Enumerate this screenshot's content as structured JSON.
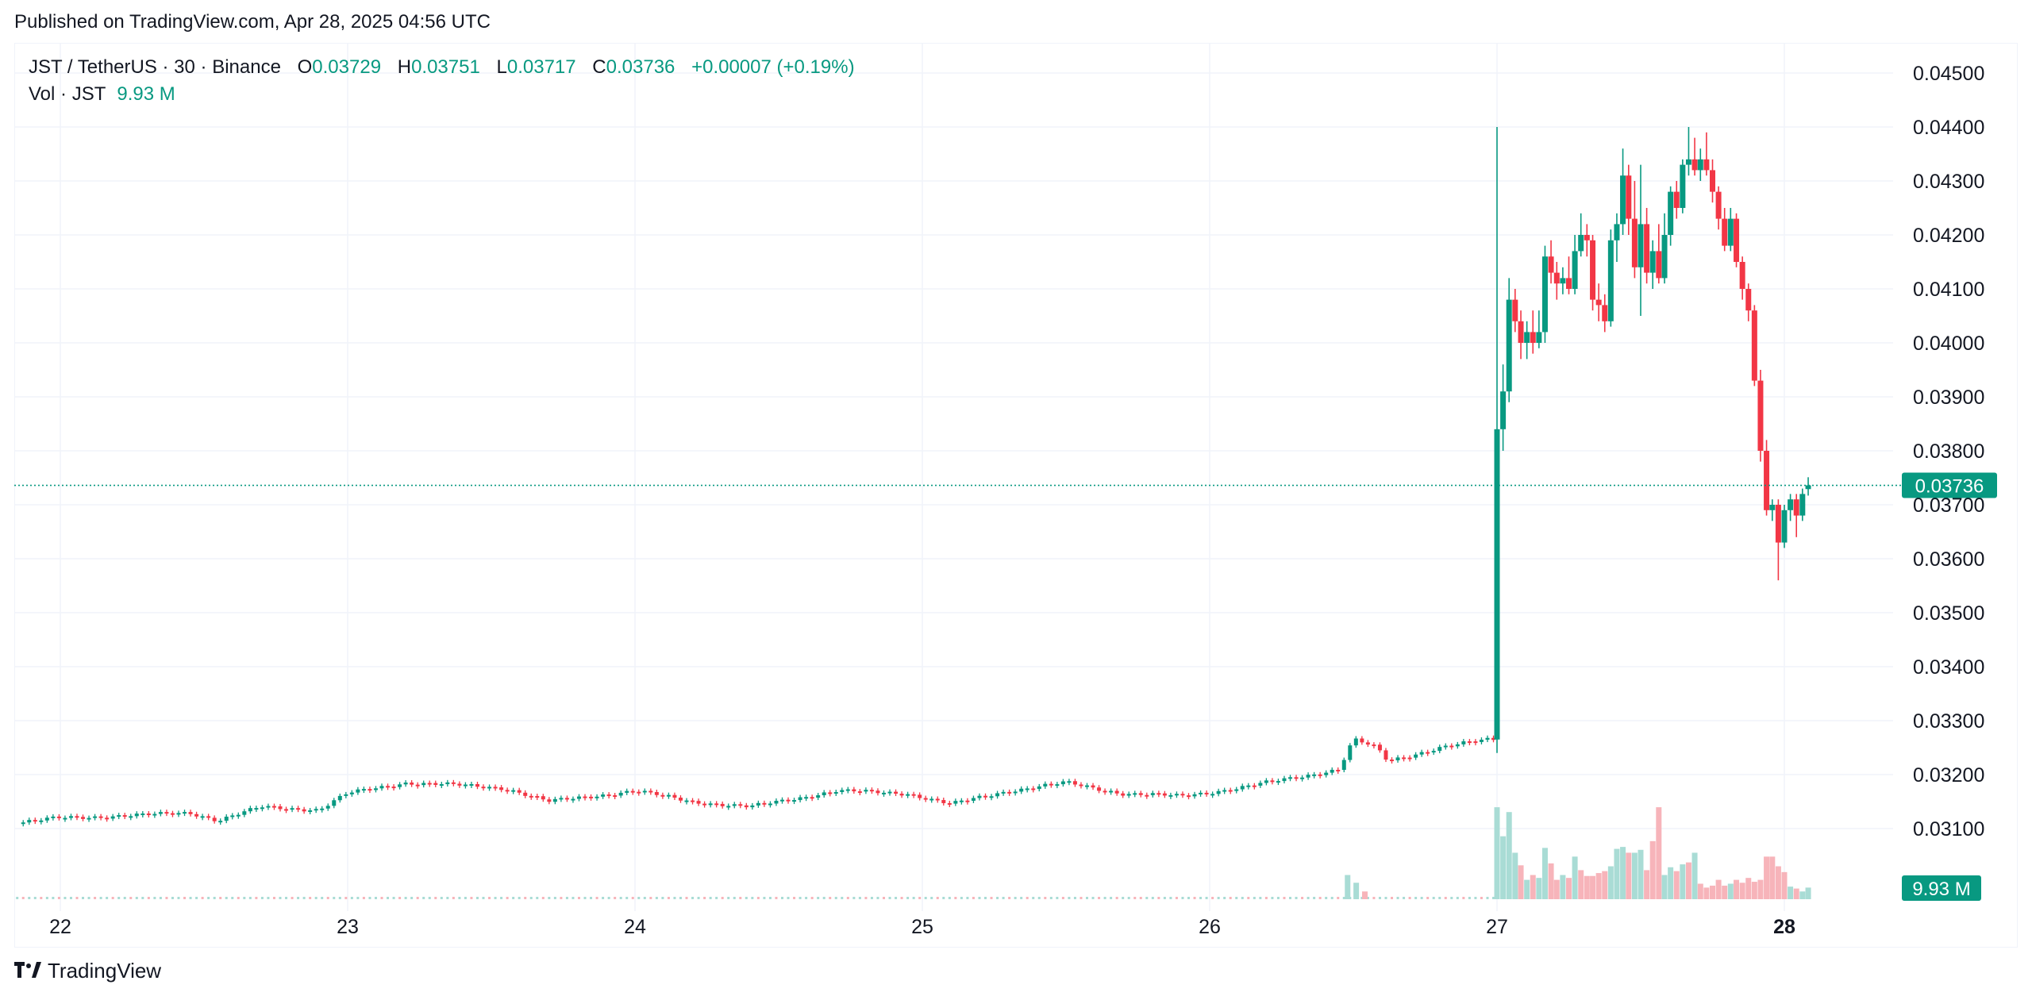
{
  "header": {
    "published": "Published on TradingView.com, Apr 28, 2025 04:56 UTC"
  },
  "legend": {
    "symbol": "JST / TetherUS · 30 · Binance",
    "o_label": "O",
    "o_value": "0.03729",
    "h_label": "H",
    "h_value": "0.03751",
    "l_label": "L",
    "l_value": "0.03717",
    "c_label": "C",
    "c_value": "0.03736",
    "change": "+0.00007 (+0.19%)",
    "vol_label": "Vol · JST",
    "vol_value": "9.93 M"
  },
  "footer": {
    "brand": "TradingView"
  },
  "colors": {
    "up": "#089981",
    "down": "#f23645",
    "up_vol": "#a9dcd5",
    "down_vol": "#f7b4ba",
    "grid": "#f0f3fa",
    "text": "#131722"
  },
  "chart_data": {
    "type": "candlestick",
    "title": "JST / TetherUS · 30 · Binance",
    "interval": "30",
    "x_ticks": [
      "22",
      "23",
      "24",
      "25",
      "26",
      "27",
      "28"
    ],
    "y_ticks": [
      "0.04500",
      "0.04400",
      "0.04300",
      "0.04200",
      "0.04100",
      "0.04000",
      "0.03900",
      "0.03800",
      "0.03700",
      "0.03600",
      "0.03500",
      "0.03400",
      "0.03300",
      "0.03200",
      "0.03100"
    ],
    "ylim": [
      0.03,
      0.0452
    ],
    "last_price": 0.03736,
    "last_price_label": "0.03736",
    "volume_label": "9.93 M",
    "grid": true,
    "price_segments": [
      {
        "day": 21.85,
        "price": 0.0311
      },
      {
        "day": 22.0,
        "price": 0.0312
      },
      {
        "day": 22.3,
        "price": 0.03125
      },
      {
        "day": 22.45,
        "price": 0.0313
      },
      {
        "day": 22.55,
        "price": 0.03115
      },
      {
        "day": 22.7,
        "price": 0.0314
      },
      {
        "day": 22.9,
        "price": 0.03135
      },
      {
        "day": 23.0,
        "price": 0.03165
      },
      {
        "day": 23.2,
        "price": 0.03185
      },
      {
        "day": 23.4,
        "price": 0.0318
      },
      {
        "day": 23.55,
        "price": 0.03175
      },
      {
        "day": 23.7,
        "price": 0.0315
      },
      {
        "day": 24.0,
        "price": 0.0317
      },
      {
        "day": 24.2,
        "price": 0.0315
      },
      {
        "day": 24.4,
        "price": 0.0314
      },
      {
        "day": 24.7,
        "price": 0.0317
      },
      {
        "day": 24.95,
        "price": 0.03165
      },
      {
        "day": 25.1,
        "price": 0.03145
      },
      {
        "day": 25.3,
        "price": 0.0317
      },
      {
        "day": 25.5,
        "price": 0.03185
      },
      {
        "day": 25.7,
        "price": 0.03165
      },
      {
        "day": 25.9,
        "price": 0.0316
      },
      {
        "day": 26.1,
        "price": 0.03175
      },
      {
        "day": 26.3,
        "price": 0.03195
      },
      {
        "day": 26.45,
        "price": 0.0321
      },
      {
        "day": 26.5,
        "price": 0.03265
      },
      {
        "day": 26.58,
        "price": 0.0325
      },
      {
        "day": 26.62,
        "price": 0.03225
      },
      {
        "day": 26.8,
        "price": 0.0325
      },
      {
        "day": 26.97,
        "price": 0.03265
      }
    ],
    "spike_candles": [
      {
        "day": 27.0,
        "open": 0.03265,
        "high": 0.044,
        "low": 0.0324,
        "close": 0.0384
      },
      {
        "day": 27.021,
        "open": 0.0384,
        "high": 0.0396,
        "low": 0.038,
        "close": 0.0391
      },
      {
        "day": 27.042,
        "open": 0.0391,
        "high": 0.0412,
        "low": 0.0389,
        "close": 0.0408
      },
      {
        "day": 27.063,
        "open": 0.0408,
        "high": 0.041,
        "low": 0.0402,
        "close": 0.0404
      },
      {
        "day": 27.083,
        "open": 0.0404,
        "high": 0.0406,
        "low": 0.0397,
        "close": 0.04
      },
      {
        "day": 27.104,
        "open": 0.04,
        "high": 0.0404,
        "low": 0.0397,
        "close": 0.0402
      },
      {
        "day": 27.125,
        "open": 0.0402,
        "high": 0.0406,
        "low": 0.0398,
        "close": 0.04
      },
      {
        "day": 27.146,
        "open": 0.04,
        "high": 0.0406,
        "low": 0.0399,
        "close": 0.0402
      },
      {
        "day": 27.167,
        "open": 0.0402,
        "high": 0.0418,
        "low": 0.04,
        "close": 0.0416
      },
      {
        "day": 27.188,
        "open": 0.0416,
        "high": 0.0419,
        "low": 0.0411,
        "close": 0.0413
      },
      {
        "day": 27.208,
        "open": 0.0413,
        "high": 0.0415,
        "low": 0.0408,
        "close": 0.0411
      },
      {
        "day": 27.229,
        "open": 0.0411,
        "high": 0.0414,
        "low": 0.0409,
        "close": 0.0412
      },
      {
        "day": 27.25,
        "open": 0.0412,
        "high": 0.0416,
        "low": 0.0409,
        "close": 0.041
      },
      {
        "day": 27.271,
        "open": 0.041,
        "high": 0.042,
        "low": 0.0409,
        "close": 0.0417
      },
      {
        "day": 27.292,
        "open": 0.0417,
        "high": 0.0424,
        "low": 0.0416,
        "close": 0.042
      },
      {
        "day": 27.313,
        "open": 0.042,
        "high": 0.0422,
        "low": 0.0416,
        "close": 0.0419
      },
      {
        "day": 27.333,
        "open": 0.0419,
        "high": 0.042,
        "low": 0.0406,
        "close": 0.0408
      },
      {
        "day": 27.354,
        "open": 0.0408,
        "high": 0.0411,
        "low": 0.0404,
        "close": 0.0407
      },
      {
        "day": 27.375,
        "open": 0.0407,
        "high": 0.0409,
        "low": 0.0402,
        "close": 0.0404
      },
      {
        "day": 27.396,
        "open": 0.0404,
        "high": 0.0421,
        "low": 0.0403,
        "close": 0.0419
      },
      {
        "day": 27.417,
        "open": 0.0419,
        "high": 0.0424,
        "low": 0.0415,
        "close": 0.0422
      },
      {
        "day": 27.438,
        "open": 0.0422,
        "high": 0.0436,
        "low": 0.042,
        "close": 0.0431
      },
      {
        "day": 27.458,
        "open": 0.0431,
        "high": 0.0433,
        "low": 0.042,
        "close": 0.0423
      },
      {
        "day": 27.479,
        "open": 0.0423,
        "high": 0.043,
        "low": 0.0412,
        "close": 0.0414
      },
      {
        "day": 27.5,
        "open": 0.0414,
        "high": 0.0433,
        "low": 0.0405,
        "close": 0.0422
      },
      {
        "day": 27.521,
        "open": 0.0422,
        "high": 0.0425,
        "low": 0.0411,
        "close": 0.0413
      },
      {
        "day": 27.542,
        "open": 0.0413,
        "high": 0.0419,
        "low": 0.041,
        "close": 0.0417
      },
      {
        "day": 27.563,
        "open": 0.0417,
        "high": 0.0422,
        "low": 0.0411,
        "close": 0.0412
      },
      {
        "day": 27.583,
        "open": 0.0412,
        "high": 0.0424,
        "low": 0.0411,
        "close": 0.042
      },
      {
        "day": 27.604,
        "open": 0.042,
        "high": 0.0429,
        "low": 0.0418,
        "close": 0.0428
      },
      {
        "day": 27.625,
        "open": 0.0428,
        "high": 0.043,
        "low": 0.0423,
        "close": 0.0425
      },
      {
        "day": 27.646,
        "open": 0.0425,
        "high": 0.0434,
        "low": 0.0424,
        "close": 0.0433
      },
      {
        "day": 27.667,
        "open": 0.0433,
        "high": 0.044,
        "low": 0.0431,
        "close": 0.0434
      },
      {
        "day": 27.688,
        "open": 0.0434,
        "high": 0.0438,
        "low": 0.0431,
        "close": 0.0432
      },
      {
        "day": 27.708,
        "open": 0.0432,
        "high": 0.0436,
        "low": 0.043,
        "close": 0.0434
      },
      {
        "day": 27.729,
        "open": 0.0434,
        "high": 0.0439,
        "low": 0.0431,
        "close": 0.0432
      },
      {
        "day": 27.75,
        "open": 0.0432,
        "high": 0.0434,
        "low": 0.0426,
        "close": 0.0428
      },
      {
        "day": 27.771,
        "open": 0.0428,
        "high": 0.0429,
        "low": 0.0421,
        "close": 0.0423
      },
      {
        "day": 27.792,
        "open": 0.0423,
        "high": 0.0425,
        "low": 0.0417,
        "close": 0.0418
      },
      {
        "day": 27.813,
        "open": 0.0418,
        "high": 0.0425,
        "low": 0.0417,
        "close": 0.0423
      },
      {
        "day": 27.833,
        "open": 0.0423,
        "high": 0.0424,
        "low": 0.0414,
        "close": 0.0415
      },
      {
        "day": 27.854,
        "open": 0.0415,
        "high": 0.0416,
        "low": 0.0408,
        "close": 0.041
      },
      {
        "day": 27.875,
        "open": 0.041,
        "high": 0.0411,
        "low": 0.0404,
        "close": 0.0406
      },
      {
        "day": 27.896,
        "open": 0.0406,
        "high": 0.0407,
        "low": 0.0392,
        "close": 0.0393
      },
      {
        "day": 27.917,
        "open": 0.0393,
        "high": 0.0395,
        "low": 0.0378,
        "close": 0.038
      },
      {
        "day": 27.938,
        "open": 0.038,
        "high": 0.0382,
        "low": 0.0368,
        "close": 0.0369
      },
      {
        "day": 27.958,
        "open": 0.0369,
        "high": 0.0371,
        "low": 0.0367,
        "close": 0.037
      },
      {
        "day": 27.979,
        "open": 0.037,
        "high": 0.0371,
        "low": 0.0356,
        "close": 0.0363
      },
      {
        "day": 28.0,
        "open": 0.0363,
        "high": 0.037,
        "low": 0.0362,
        "close": 0.0369
      },
      {
        "day": 28.021,
        "open": 0.0369,
        "high": 0.0372,
        "low": 0.0367,
        "close": 0.0371
      },
      {
        "day": 28.042,
        "open": 0.0371,
        "high": 0.0372,
        "low": 0.0364,
        "close": 0.0368
      },
      {
        "day": 28.063,
        "open": 0.0368,
        "high": 0.0373,
        "low": 0.0367,
        "close": 0.0372
      },
      {
        "day": 28.083,
        "open": 0.03729,
        "high": 0.03751,
        "low": 0.03717,
        "close": 0.03736
      }
    ],
    "volume_profile": [
      {
        "day": 26.48,
        "level": 0.25,
        "dir": "up"
      },
      {
        "day": 26.51,
        "level": 0.17,
        "dir": "up"
      },
      {
        "day": 26.54,
        "level": 0.08,
        "dir": "down"
      },
      {
        "day": 27.0,
        "level": 0.95,
        "dir": "up"
      },
      {
        "day": 27.021,
        "level": 0.65,
        "dir": "up"
      },
      {
        "day": 27.042,
        "level": 0.9,
        "dir": "up"
      },
      {
        "day": 27.063,
        "level": 0.48,
        "dir": "up"
      },
      {
        "day": 27.083,
        "level": 0.35,
        "dir": "down"
      },
      {
        "day": 27.104,
        "level": 0.2,
        "dir": "up"
      },
      {
        "day": 27.125,
        "level": 0.25,
        "dir": "down"
      },
      {
        "day": 27.146,
        "level": 0.22,
        "dir": "up"
      },
      {
        "day": 27.167,
        "level": 0.53,
        "dir": "up"
      },
      {
        "day": 27.188,
        "level": 0.37,
        "dir": "down"
      },
      {
        "day": 27.208,
        "level": 0.2,
        "dir": "down"
      },
      {
        "day": 27.229,
        "level": 0.25,
        "dir": "up"
      },
      {
        "day": 27.25,
        "level": 0.22,
        "dir": "down"
      },
      {
        "day": 27.271,
        "level": 0.44,
        "dir": "up"
      },
      {
        "day": 27.292,
        "level": 0.3,
        "dir": "down"
      },
      {
        "day": 27.313,
        "level": 0.24,
        "dir": "down"
      },
      {
        "day": 27.333,
        "level": 0.24,
        "dir": "down"
      },
      {
        "day": 27.354,
        "level": 0.27,
        "dir": "down"
      },
      {
        "day": 27.375,
        "level": 0.29,
        "dir": "down"
      },
      {
        "day": 27.396,
        "level": 0.34,
        "dir": "up"
      },
      {
        "day": 27.417,
        "level": 0.52,
        "dir": "up"
      },
      {
        "day": 27.438,
        "level": 0.54,
        "dir": "up"
      },
      {
        "day": 27.458,
        "level": 0.48,
        "dir": "down"
      },
      {
        "day": 27.479,
        "level": 0.48,
        "dir": "up"
      },
      {
        "day": 27.5,
        "level": 0.51,
        "dir": "up"
      },
      {
        "day": 27.521,
        "level": 0.3,
        "dir": "down"
      },
      {
        "day": 27.542,
        "level": 0.6,
        "dir": "down"
      },
      {
        "day": 27.563,
        "level": 0.95,
        "dir": "down"
      },
      {
        "day": 27.583,
        "level": 0.25,
        "dir": "up"
      },
      {
        "day": 27.604,
        "level": 0.33,
        "dir": "up"
      },
      {
        "day": 27.625,
        "level": 0.29,
        "dir": "down"
      },
      {
        "day": 27.646,
        "level": 0.36,
        "dir": "up"
      },
      {
        "day": 27.667,
        "level": 0.38,
        "dir": "down"
      },
      {
        "day": 27.688,
        "level": 0.48,
        "dir": "up"
      },
      {
        "day": 27.708,
        "level": 0.16,
        "dir": "down"
      },
      {
        "day": 27.729,
        "level": 0.12,
        "dir": "down"
      },
      {
        "day": 27.75,
        "level": 0.14,
        "dir": "down"
      },
      {
        "day": 27.771,
        "level": 0.2,
        "dir": "down"
      },
      {
        "day": 27.792,
        "level": 0.14,
        "dir": "down"
      },
      {
        "day": 27.813,
        "level": 0.16,
        "dir": "up"
      },
      {
        "day": 27.833,
        "level": 0.2,
        "dir": "down"
      },
      {
        "day": 27.854,
        "level": 0.17,
        "dir": "down"
      },
      {
        "day": 27.875,
        "level": 0.22,
        "dir": "down"
      },
      {
        "day": 27.896,
        "level": 0.18,
        "dir": "down"
      },
      {
        "day": 27.917,
        "level": 0.2,
        "dir": "down"
      },
      {
        "day": 27.938,
        "level": 0.44,
        "dir": "down"
      },
      {
        "day": 27.958,
        "level": 0.44,
        "dir": "down"
      },
      {
        "day": 27.979,
        "level": 0.34,
        "dir": "down"
      },
      {
        "day": 28.0,
        "level": 0.28,
        "dir": "down"
      },
      {
        "day": 28.021,
        "level": 0.13,
        "dir": "up"
      },
      {
        "day": 28.042,
        "level": 0.11,
        "dir": "down"
      },
      {
        "day": 28.063,
        "level": 0.08,
        "dir": "up"
      },
      {
        "day": 28.083,
        "level": 0.12,
        "dir": "up"
      }
    ]
  }
}
